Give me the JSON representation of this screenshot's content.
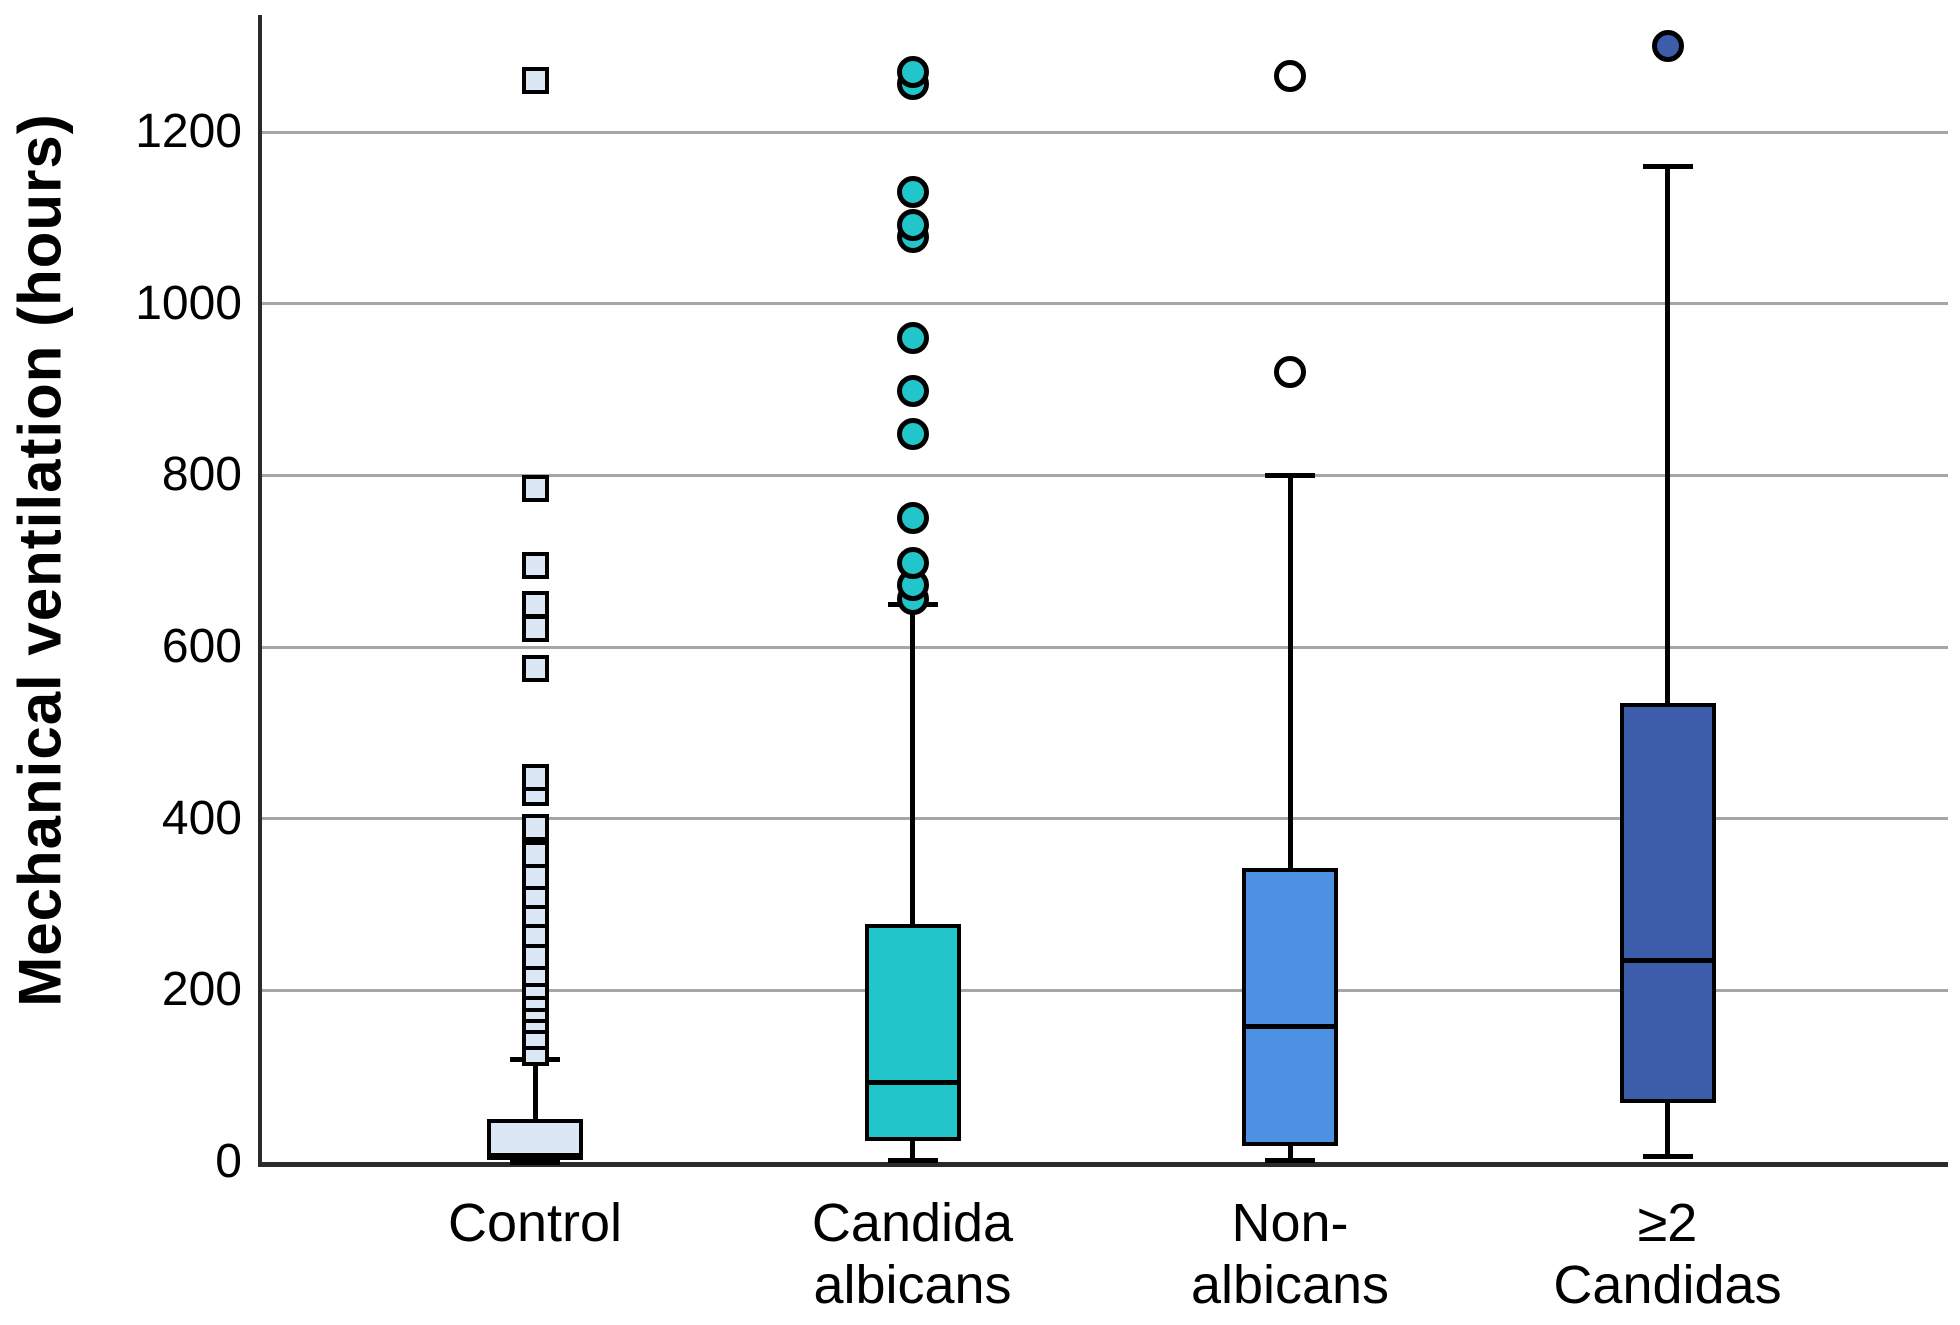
{
  "figure": {
    "ylabel": "Mechanical ventilation (hours)"
  },
  "chart_data": {
    "type": "boxplot",
    "title": "",
    "xlabel": "",
    "ylabel": "Mechanical ventilation (hours)",
    "ylim": [
      0,
      1338
    ],
    "yticks": [
      0,
      200,
      400,
      600,
      800,
      1000,
      1200
    ],
    "grid": "horizontal",
    "legend": "none",
    "categories": [
      "Control",
      "Candida albicans",
      "Non-albicans",
      "≥2 Candidas"
    ],
    "category_label_lines": [
      [
        "Control"
      ],
      [
        "Candida",
        "albicans"
      ],
      [
        "Non-",
        "albicans"
      ],
      [
        "≥2",
        "Candidas"
      ]
    ],
    "series": [
      {
        "name": "Control",
        "box_color": "#DCE7F5",
        "marker": {
          "shape": "square",
          "fill": "#DCE7F5"
        },
        "whisker_low": 0,
        "q1": 2,
        "median": 8,
        "q3": 50,
        "whisker_high": 120,
        "outliers": [
          128,
          146,
          165,
          178,
          190,
          204,
          220,
          240,
          265,
          288,
          310,
          333,
          358,
          390,
          430,
          448,
          575,
          622,
          650,
          695,
          785,
          1260
        ]
      },
      {
        "name": "Candida albicans",
        "box_color": "#21C5CA",
        "marker": {
          "shape": "circle",
          "fill": "#21C5CA"
        },
        "whisker_low": 2,
        "q1": 24,
        "median": 93,
        "q3": 277,
        "whisker_high": 650,
        "outliers": [
          656,
          672,
          698,
          750,
          848,
          898,
          960,
          1078,
          1092,
          1130,
          1256,
          1270
        ]
      },
      {
        "name": "Non-albicans",
        "box_color": "#4D92E2",
        "marker": {
          "shape": "circle",
          "fill": "#FFFFFF"
        },
        "whisker_low": 2,
        "q1": 19,
        "median": 158,
        "q3": 343,
        "whisker_high": 800,
        "outliers": [
          920,
          1265
        ]
      },
      {
        "name": "≥2 Candidas",
        "box_color": "#3C5DAA",
        "marker": {
          "shape": "circle",
          "fill": "#3C5DAA"
        },
        "whisker_low": 6,
        "q1": 69,
        "median": 235,
        "q3": 535,
        "whisker_high": 1160,
        "outliers": [
          1300
        ]
      }
    ],
    "colors": {
      "gridline": "#A6A6A6",
      "axis": "#2B2B2B",
      "text": "#000000",
      "background": "#FFFFFF"
    }
  }
}
